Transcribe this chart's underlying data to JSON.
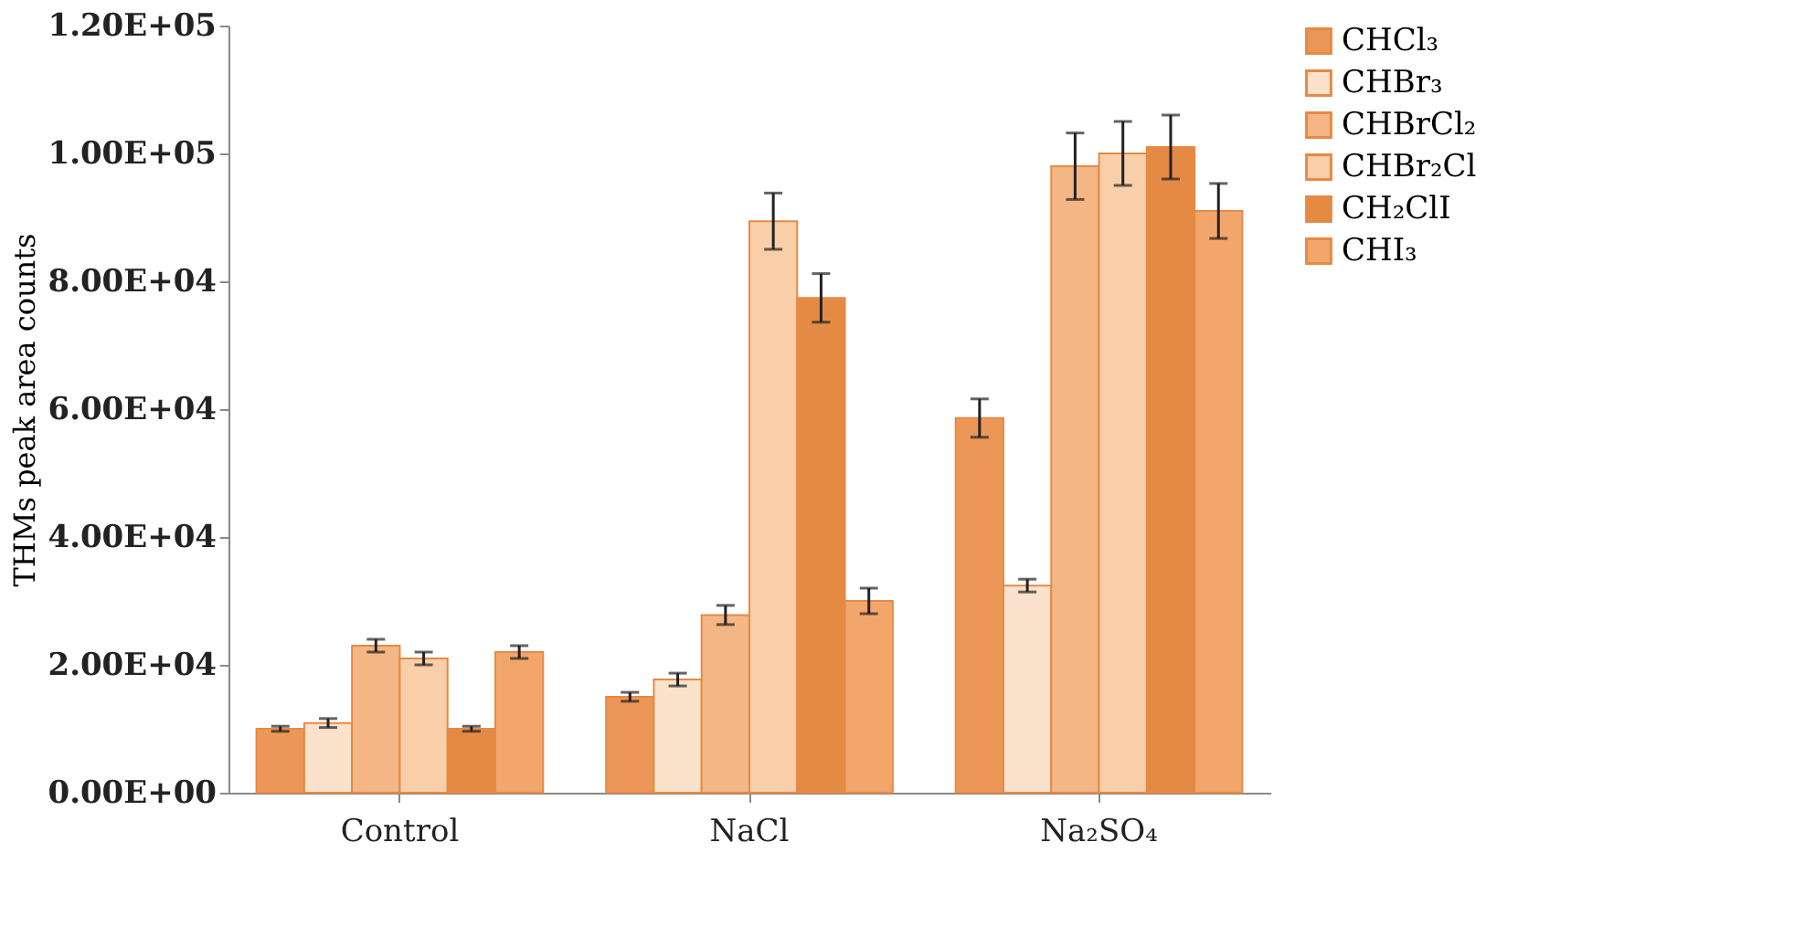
{
  "chart_data": {
    "type": "bar",
    "ylabel": "THMs peak area counts",
    "categories": [
      "Control",
      "NaCl",
      "Na₂SO₄"
    ],
    "series": [
      {
        "name": "CHCl₃",
        "color": "#ec9757",
        "values": [
          10000,
          15000,
          58600
        ],
        "errors": [
          400,
          700,
          3000
        ]
      },
      {
        "name": "CHBr₃",
        "color": "#fbe2cc",
        "values": [
          10900,
          17700,
          32400
        ],
        "errors": [
          700,
          1000,
          1000
        ]
      },
      {
        "name": "CHBrCl₂",
        "color": "#f4b684",
        "values": [
          23000,
          27800,
          98000
        ],
        "errors": [
          1000,
          1500,
          5200
        ]
      },
      {
        "name": "CHBr₂Cl",
        "color": "#f8cfa8",
        "values": [
          21000,
          89400,
          100000
        ],
        "errors": [
          1000,
          4400,
          5000
        ]
      },
      {
        "name": "CH₂ClI",
        "color": "#e58a45",
        "values": [
          10000,
          77400,
          101000
        ],
        "errors": [
          400,
          3800,
          5000
        ]
      },
      {
        "name": "CHI₃",
        "color": "#f2a66c",
        "values": [
          22000,
          30000,
          91000
        ],
        "errors": [
          1000,
          2000,
          4300
        ]
      }
    ],
    "ylim": [
      0,
      120000
    ],
    "yticks": [
      {
        "value": 0,
        "label": "0.00E+00"
      },
      {
        "value": 20000,
        "label": "2.00E+04"
      },
      {
        "value": 40000,
        "label": "4.00E+04"
      },
      {
        "value": 60000,
        "label": "6.00E+04"
      },
      {
        "value": 80000,
        "label": "8.00E+04"
      },
      {
        "value": 100000,
        "label": "1.00E+05"
      },
      {
        "value": 120000,
        "label": "1.20E+05"
      }
    ],
    "grid": false,
    "legend": "right"
  }
}
